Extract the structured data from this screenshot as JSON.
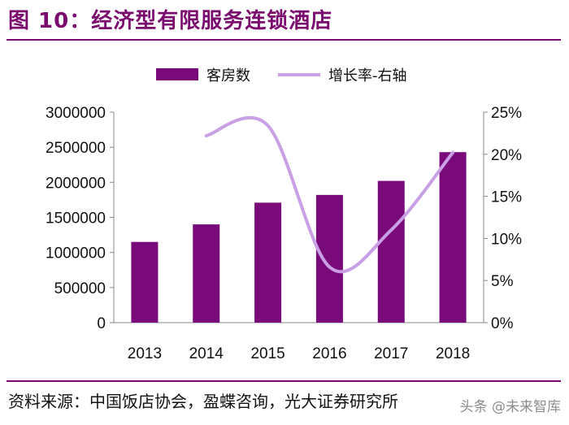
{
  "header": {
    "title": "图 10：经济型有限服务连锁酒店"
  },
  "footer": {
    "source": "资料来源：中国饭店协会，盈蝶咨询，光大证券研究所",
    "watermark": "头条 @未来智库"
  },
  "colors": {
    "bar": "#7a0a7a",
    "line": "#c9a0e6",
    "accent": "#7a0a6e"
  },
  "chart_data": {
    "type": "bar",
    "categories": [
      "2013",
      "2014",
      "2015",
      "2016",
      "2017",
      "2018"
    ],
    "series": [
      {
        "name": "客房数",
        "type": "bar",
        "axis": "left",
        "values": [
          1150000,
          1400000,
          1710000,
          1820000,
          2020000,
          2430000
        ]
      },
      {
        "name": "增长率-右轴",
        "type": "line",
        "axis": "right",
        "values": [
          null,
          22.2,
          23.4,
          6.6,
          11.0,
          20.2
        ]
      }
    ],
    "y_left": {
      "min": 0,
      "max": 3000000,
      "ticks": [
        "0",
        "500000",
        "1000000",
        "1500000",
        "2000000",
        "2500000",
        "3000000"
      ]
    },
    "y_right": {
      "min": 0,
      "max": 25,
      "ticks": [
        "0%",
        "5%",
        "10%",
        "15%",
        "20%",
        "25%"
      ]
    },
    "legend_position": "top",
    "grid": false
  }
}
